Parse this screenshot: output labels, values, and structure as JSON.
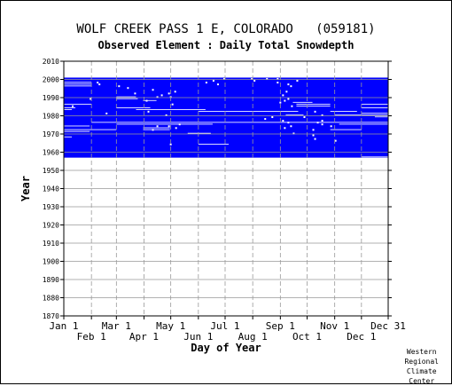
{
  "chart_data": {
    "type": "heatmap",
    "title": "WOLF CREEK PASS 1 E, COLORADO   (059181)",
    "subtitle": "Observed Element : Daily Total Snowdepth",
    "xlabel": "Day of Year",
    "ylabel": "Year",
    "ylim": [
      1870,
      2010
    ],
    "xlim": [
      "Jan 1",
      "Dec 31"
    ],
    "y_ticks": [
      1870,
      1880,
      1890,
      1900,
      1910,
      1920,
      1930,
      1940,
      1950,
      1960,
      1970,
      1980,
      1990,
      2000,
      2010
    ],
    "x_ticks_top_row": [
      "Jan 1",
      "Mar 1",
      "May 1",
      "Jul 1",
      "Sep 1",
      "Nov 1",
      "Dec 31"
    ],
    "x_ticks_bottom_row": [
      "Feb 1",
      "Apr 1",
      "Jun 1",
      "Aug 1",
      "Oct 1",
      "Dec 1"
    ],
    "grid": true,
    "fill_color": "#0000ff",
    "record_start_year": 1957,
    "record_end_year": 2000,
    "missing_data_gaps": [
      {
        "year": 1998,
        "start_day": 1,
        "end_day": 32
      },
      {
        "year": 1997,
        "start_day": 1,
        "end_day": 32
      },
      {
        "year": 1996,
        "start_day": 1,
        "end_day": 32
      },
      {
        "year": 1986,
        "start_day": 1,
        "end_day": 32
      },
      {
        "year": 1984,
        "start_day": 1,
        "end_day": 14
      },
      {
        "year": 1990,
        "start_day": 60,
        "end_day": 82
      },
      {
        "year": 1989,
        "start_day": 60,
        "end_day": 84
      },
      {
        "year": 1984,
        "start_day": 60,
        "end_day": 98
      },
      {
        "year": 1988,
        "start_day": 90,
        "end_day": 105
      },
      {
        "year": 1983,
        "start_day": 82,
        "end_day": 160
      },
      {
        "year": 1982,
        "start_day": 152,
        "end_day": 264
      },
      {
        "year": 1980,
        "start_day": 250,
        "end_day": 270
      },
      {
        "year": 1976,
        "start_day": 32,
        "end_day": 365
      },
      {
        "year": 1975,
        "start_day": 60,
        "end_day": 168
      },
      {
        "year": 1974,
        "start_day": 1,
        "end_day": 30
      },
      {
        "year": 1973,
        "start_day": 90,
        "end_day": 120
      },
      {
        "year": 1972,
        "start_day": 1,
        "end_day": 60
      },
      {
        "year": 1972,
        "start_day": 90,
        "end_day": 120
      },
      {
        "year": 1971,
        "start_day": 1,
        "end_day": 30
      },
      {
        "year": 1968,
        "start_day": 1,
        "end_day": 10
      },
      {
        "year": 1970,
        "start_day": 140,
        "end_day": 166
      },
      {
        "year": 1964,
        "start_day": 152,
        "end_day": 186
      },
      {
        "year": 1987,
        "start_day": 258,
        "end_day": 280
      },
      {
        "year": 1986,
        "start_day": 262,
        "end_day": 300
      },
      {
        "year": 1985,
        "start_day": 262,
        "end_day": 300
      },
      {
        "year": 1986,
        "start_day": 335,
        "end_day": 365
      },
      {
        "year": 1984,
        "start_day": 335,
        "end_day": 365
      },
      {
        "year": 1981,
        "start_day": 335,
        "end_day": 365
      },
      {
        "year": 1980,
        "start_day": 305,
        "end_day": 365
      },
      {
        "year": 1979,
        "start_day": 350,
        "end_day": 365
      },
      {
        "year": 1975,
        "start_day": 310,
        "end_day": 365
      },
      {
        "year": 1972,
        "start_day": 300,
        "end_day": 335
      },
      {
        "year": 1982,
        "start_day": 300,
        "end_day": 330
      },
      {
        "year": 1983,
        "start_day": 1,
        "end_day": 10
      },
      {
        "year": 1957,
        "start_day": 335,
        "end_day": 365
      }
    ],
    "scatter_gaps": [
      [
        1997,
        40
      ],
      [
        1995,
        72
      ],
      [
        1994,
        100
      ],
      [
        1992,
        80
      ],
      [
        1991,
        110
      ],
      [
        1990,
        120
      ],
      [
        1993,
        125
      ],
      [
        1992,
        118
      ],
      [
        1990,
        105
      ],
      [
        1988,
        93
      ],
      [
        1986,
        122
      ],
      [
        1982,
        95
      ],
      [
        1980,
        115
      ],
      [
        1975,
        130
      ],
      [
        1974,
        118
      ],
      [
        1974,
        105
      ],
      [
        1973,
        126
      ],
      [
        1972,
        100
      ],
      [
        1964,
        120
      ],
      [
        1996,
        62
      ],
      [
        2000,
        180
      ],
      [
        1999,
        168
      ],
      [
        1998,
        160
      ],
      [
        1997,
        173
      ],
      [
        2000,
        211
      ],
      [
        1999,
        214
      ],
      [
        2000,
        228
      ],
      [
        1998,
        240
      ],
      [
        2000,
        240
      ],
      [
        1997,
        252
      ],
      [
        1999,
        262
      ],
      [
        1996,
        255
      ],
      [
        1993,
        250
      ],
      [
        1991,
        246
      ],
      [
        1989,
        252
      ],
      [
        1988,
        248
      ],
      [
        1987,
        243
      ],
      [
        1985,
        256
      ],
      [
        1979,
        234
      ],
      [
        1978,
        226
      ],
      [
        1977,
        246
      ],
      [
        1976,
        252
      ],
      [
        1973,
        248
      ],
      [
        1974,
        255
      ],
      [
        1970,
        258
      ],
      [
        1972,
        280
      ],
      [
        1979,
        270
      ],
      [
        1976,
        285
      ],
      [
        1975,
        290
      ],
      [
        1977,
        290
      ],
      [
        1974,
        300
      ],
      [
        1969,
        280
      ],
      [
        1967,
        282
      ],
      [
        1980,
        290
      ],
      [
        1982,
        282
      ],
      [
        1966,
        305
      ],
      [
        1998,
        38
      ],
      [
        1985,
        10
      ],
      [
        1981,
        48
      ],
      [
        1989,
        30
      ]
    ]
  },
  "credit_lines": [
    "Western",
    "Regional",
    "Climate",
    "Center"
  ]
}
